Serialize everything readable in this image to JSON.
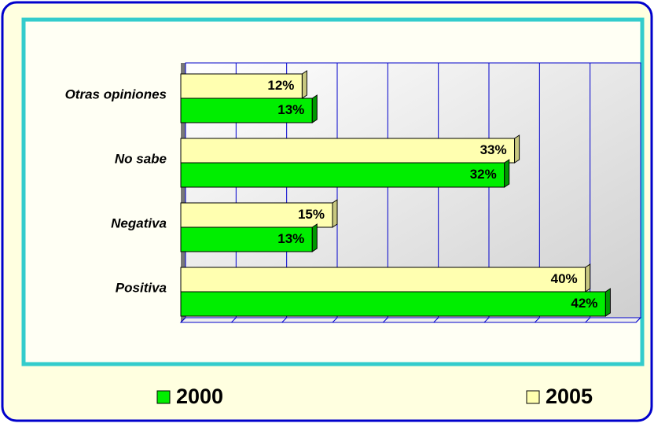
{
  "chart_data": {
    "type": "bar",
    "orientation": "horizontal",
    "categories": [
      "Otras opiniones",
      "No sabe",
      "Negativa",
      "Positiva"
    ],
    "series": [
      {
        "name": "2005",
        "color": "#ffffb0",
        "values": [
          12,
          33,
          15,
          40
        ],
        "value_labels": [
          "12%",
          "33%",
          "15%",
          "40%"
        ]
      },
      {
        "name": "2000",
        "color": "#00ee00",
        "values": [
          13,
          32,
          13,
          42
        ],
        "value_labels": [
          "13%",
          "32%",
          "13%",
          "42%"
        ]
      }
    ],
    "xlim": [
      0,
      45
    ],
    "xticks": [
      0,
      5,
      10,
      15,
      20,
      25,
      30,
      35,
      40,
      45
    ],
    "grid": true
  }
}
